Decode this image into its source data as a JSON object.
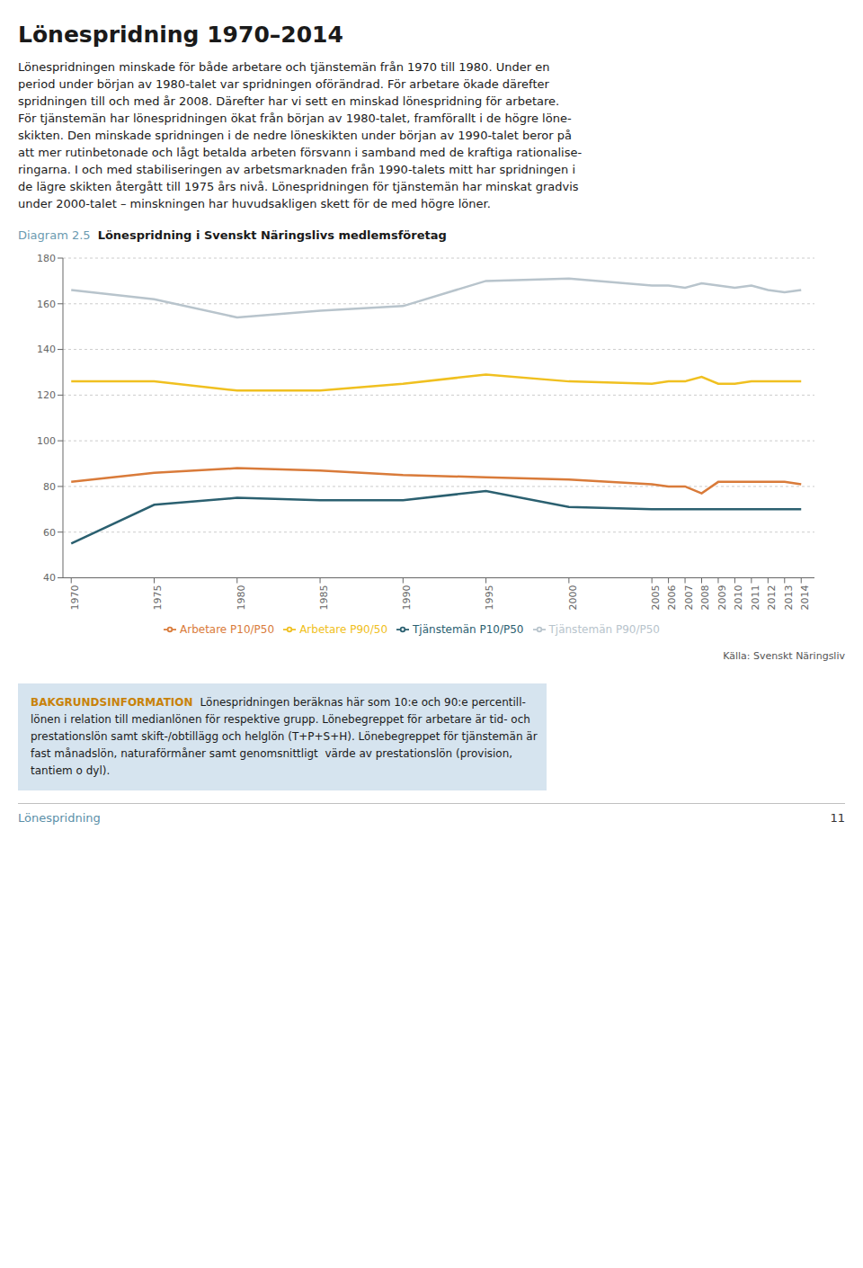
{
  "chart_data": {
    "type": "line",
    "title": "Lönespridning 1970–2014",
    "subtitle": "Lönespridning i Svenskt Näringslivs medlemsföretag",
    "annotations": [
      "Lönespridningen minskade för både arbetare och tjänstemän från 1970 till 1980. Under en",
      "period under början av 1980-talet var spridningen oförändrad. För arbetare ökade därefter",
      "spridningen till och med år 2008. Därefter har vi sett en minskad lönespridning för arbetare.",
      "För tjänstemän har lönespridningen ökat från början av 1980-talet, framförallt i de högre löne-",
      "skikten. Den minskade spridningen i de nedre löneskikten under början av 1990-talet beror på",
      "att mer rutinbetonade och lågt betalda arbeten försvann i samband med de kraftiga rationalise-",
      "ringarna. I och med stabiliseringen av arbetsmarknaden från 1990-talets mitt har spridningen i",
      "de lägre skikten återgått till 1975 års nivå. Lönespridningen för tjänstemän har minskat gradvis",
      "under 2000-talet – minskningen har huvudsakligen skett för de med högre löner.",
      "Diagram 2.5",
      "Källa: Svenskt Näringsliv",
      "BAKGRUNDSINFORMATION",
      "Lönespridningen beräknas här som 10:e och 90:e percentill-",
      "lönen i relation till medianlönen för respektive grupp. Lönebegreppet för arbetare är tid- och",
      "prestationslön samt skift-/obtillägg och helglön (T+P+S+H). Lönebegreppet för tjänstemän är",
      "fast månadslön, naturaförmåner samt genomsnittligt  värde av prestationslön (provision,",
      "tantiem o dyl).",
      "Lönespridning",
      "11"
    ],
    "x": [
      1970,
      1975,
      1980,
      1985,
      1990,
      1995,
      2000,
      2005,
      2006,
      2007,
      2008,
      2009,
      2010,
      2011,
      2012,
      2013,
      2014
    ],
    "xlim": [
      1969.5,
      2014.8
    ],
    "xticks": [
      1970,
      1975,
      1980,
      1985,
      1990,
      1995,
      2000,
      2005,
      2006,
      2007,
      2008,
      2009,
      2010,
      2011,
      2012,
      2013,
      2014
    ],
    "ylim": [
      40,
      180
    ],
    "yticks": [
      40,
      60,
      80,
      100,
      120,
      140,
      160,
      180
    ],
    "grid": true,
    "legend": "bottom",
    "series": [
      {
        "name": "Tjänstemän P10/P50",
        "color": "#2b6070",
        "values": [
          55,
          72,
          75,
          74,
          74,
          78,
          71,
          70,
          70,
          70,
          70,
          70,
          70,
          70,
          70,
          70,
          70
        ]
      },
      {
        "name": "Tjänstemän P90/P50",
        "color": "#b8c4cc",
        "values": [
          166,
          162,
          154,
          157,
          159,
          170,
          171,
          168,
          168,
          167,
          169,
          168,
          167,
          168,
          166,
          165,
          166
        ]
      },
      {
        "name": "Arbetare P10/P50",
        "color": "#d97b3a",
        "values": [
          82,
          86,
          88,
          87,
          85,
          84,
          83,
          81,
          80,
          80,
          77,
          82,
          82,
          82,
          82,
          82,
          81
        ]
      },
      {
        "name": "Arbetare P90/50",
        "color": "#f0c020",
        "values": [
          126,
          126,
          122,
          122,
          125,
          129,
          126,
          125,
          126,
          126,
          128,
          125,
          125,
          126,
          126,
          126,
          126
        ]
      }
    ]
  }
}
